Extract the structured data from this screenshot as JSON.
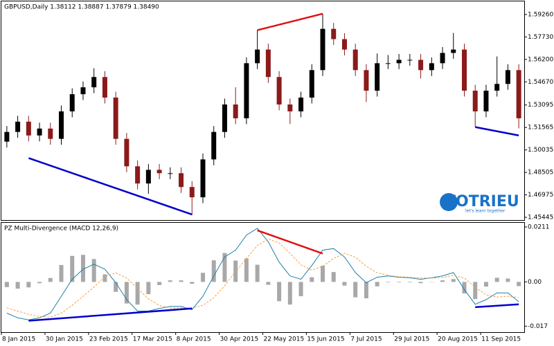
{
  "chart_data": [
    {
      "type": "candlestick",
      "title": "GBPUSD,Daily  1.38112 1.38887 1.37879 1.38490",
      "up_color": "#000000",
      "down_color": "#8b1a1a",
      "open": [
        1.506,
        1.5126,
        1.5196,
        1.5102,
        1.5149,
        1.5079,
        1.5266,
        1.5383,
        1.543,
        1.55,
        1.536,
        1.5079,
        1.4892,
        1.4775,
        1.4868,
        1.4845,
        1.4845,
        1.4751,
        1.4681,
        1.4939,
        1.5126,
        1.5313,
        1.5219,
        1.5594,
        1.5687,
        1.55,
        1.5313,
        1.5266,
        1.536,
        1.5547,
        1.5828,
        1.5758,
        1.5687,
        1.5547,
        1.5407,
        1.5594,
        1.5594,
        1.5617,
        1.5617,
        1.5547,
        1.5594,
        1.5664,
        1.5687,
        1.5407,
        1.5266,
        1.5407,
        1.5453,
        1.5547
      ],
      "high": [
        1.5166,
        1.5236,
        1.5236,
        1.5189,
        1.5189,
        1.5306,
        1.5423,
        1.547,
        1.556,
        1.554,
        1.54,
        1.5119,
        1.4932,
        1.4908,
        1.4908,
        1.4885,
        1.4885,
        1.4791,
        1.4979,
        1.5166,
        1.5353,
        1.543,
        1.5634,
        1.582,
        1.5727,
        1.554,
        1.5353,
        1.54,
        1.5587,
        1.593,
        1.5868,
        1.5798,
        1.5727,
        1.5587,
        1.566,
        1.565,
        1.5657,
        1.5657,
        1.5657,
        1.5634,
        1.5704,
        1.58,
        1.5727,
        1.5447,
        1.5447,
        1.564,
        1.5587,
        1.5587
      ],
      "low": [
        1.502,
        1.5086,
        1.5062,
        1.5062,
        1.5039,
        1.5039,
        1.5226,
        1.5343,
        1.539,
        1.532,
        1.5039,
        1.4852,
        1.4735,
        1.4705,
        1.4805,
        1.4805,
        1.4711,
        1.456,
        1.4641,
        1.4899,
        1.5086,
        1.5179,
        1.5179,
        1.5554,
        1.546,
        1.5273,
        1.518,
        1.5226,
        1.532,
        1.5507,
        1.5718,
        1.5647,
        1.5507,
        1.533,
        1.5367,
        1.5554,
        1.5554,
        1.5577,
        1.549,
        1.5507,
        1.5554,
        1.5624,
        1.5367,
        1.516,
        1.5226,
        1.5367,
        1.5413,
        1.515
      ],
      "close": [
        1.5126,
        1.5196,
        1.5102,
        1.5149,
        1.5079,
        1.5266,
        1.5383,
        1.543,
        1.55,
        1.536,
        1.5079,
        1.4892,
        1.4775,
        1.4868,
        1.4845,
        1.4845,
        1.4751,
        1.4681,
        1.4939,
        1.5126,
        1.5313,
        1.5219,
        1.5594,
        1.5687,
        1.55,
        1.5313,
        1.5266,
        1.536,
        1.5547,
        1.5828,
        1.5758,
        1.5687,
        1.5547,
        1.5407,
        1.5594,
        1.5594,
        1.5617,
        1.5617,
        1.5547,
        1.5594,
        1.5664,
        1.5687,
        1.5407,
        1.5266,
        1.5407,
        1.5453,
        1.5547,
        1.5219
      ],
      "ylim": [
        1.4526,
        1.6015
      ],
      "yticks": [
        {
          "value": 1.5926,
          "label": "1.59260"
        },
        {
          "value": 1.5773,
          "label": "1.57730"
        },
        {
          "value": 1.562,
          "label": "1.56200"
        },
        {
          "value": 1.5467,
          "label": "1.54670"
        },
        1.53095,
        1.51565,
        1.50035,
        1.48505,
        1.46975,
        1.45445
      ],
      "divergences": [
        {
          "color": "#0000cc",
          "x": [
            2,
            17
          ],
          "values": [
            1.4948,
            1.4564
          ]
        },
        {
          "color": "#e01010",
          "x": [
            23,
            29
          ],
          "values": [
            1.5819,
            1.5931
          ]
        },
        {
          "color": "#0000cc",
          "x": [
            43,
            47
          ],
          "values": [
            1.5159,
            1.5102
          ]
        }
      ],
      "watermark": {
        "name": "TOTRIEU",
        "tagline": "let's learn together"
      }
    },
    {
      "type": "macd",
      "title": "PZ Multi-Divergence (MACD 12,26,9)",
      "categories": [
        "8 Jan 2015",
        null,
        null,
        null,
        "30 Jan 2015",
        null,
        null,
        null,
        "23 Feb 2015",
        null,
        null,
        null,
        "17 Mar 2015",
        null,
        null,
        null,
        "8 Apr 2015",
        null,
        null,
        null,
        "30 Apr 2015",
        null,
        null,
        null,
        "22 May 2015",
        null,
        null,
        null,
        "15 Jun 2015",
        null,
        null,
        null,
        "7 Jul 2015",
        null,
        null,
        null,
        "29 Jul 2015",
        null,
        null,
        null,
        "20 Aug 2015",
        null,
        null,
        null,
        "11 Sep 2015",
        null,
        null,
        null
      ],
      "series": [
        {
          "name": "histogram",
          "color": "#a8a8a8",
          "values": [
            -0.002,
            -0.0026,
            -0.0021,
            -0.0005,
            0.0015,
            0.0065,
            0.01,
            0.0104,
            0.0088,
            0.0029,
            -0.0038,
            -0.0083,
            -0.0087,
            -0.0047,
            -0.0012,
            0.0006,
            0.0006,
            -0.0007,
            0.0035,
            0.0083,
            0.0111,
            0.0082,
            0.009,
            0.0066,
            -0.0011,
            -0.0074,
            -0.0087,
            -0.0055,
            0.0018,
            0.0062,
            0.0038,
            -0.0014,
            -0.0059,
            -0.0063,
            -0.0017,
            -0.0002,
            -0.0002,
            -0.0002,
            -0.0005,
            0.0001,
            0.0006,
            0.0011,
            -0.0044,
            -0.0066,
            -0.0018,
            0.0016,
            0.0013,
            -0.0016
          ]
        },
        {
          "name": "macd",
          "color": "#1e7ea8",
          "values": [
            -0.012,
            -0.0138,
            -0.0146,
            -0.0138,
            -0.012,
            -0.0055,
            0.001,
            0.0049,
            0.0068,
            0.0049,
            -0.0003,
            -0.0068,
            -0.0112,
            -0.0112,
            -0.0102,
            -0.0094,
            -0.0094,
            -0.0107,
            -0.0055,
            0.0023,
            0.0096,
            0.0122,
            0.018,
            0.0206,
            0.0154,
            0.0076,
            0.0023,
            0.001,
            0.0063,
            0.0122,
            0.0128,
            0.0096,
            0.0036,
            -0.0003,
            0.0018,
            0.0023,
            0.0018,
            0.0016,
            0.001,
            0.0016,
            0.0023,
            0.0036,
            -0.0029,
            -0.0086,
            -0.0068,
            -0.0042,
            -0.0042,
            -0.0076
          ]
        },
        {
          "name": "signal",
          "color": "#f4a040",
          "values": [
            -0.01,
            -0.0112,
            -0.0125,
            -0.0133,
            -0.0135,
            -0.012,
            -0.009,
            -0.0055,
            -0.002,
            0.002,
            0.0035,
            0.0015,
            -0.0025,
            -0.0065,
            -0.009,
            -0.01,
            -0.01,
            -0.01,
            -0.009,
            -0.006,
            -0.0015,
            0.004,
            0.009,
            0.014,
            0.0165,
            0.015,
            0.011,
            0.0065,
            0.0045,
            0.006,
            0.009,
            0.011,
            0.0095,
            0.006,
            0.0035,
            0.0025,
            0.002,
            0.0018,
            0.0015,
            0.0015,
            0.0017,
            0.0025,
            0.0015,
            -0.002,
            -0.005,
            -0.0058,
            -0.0055,
            -0.006
          ]
        }
      ],
      "ylim": [
        -0.0193,
        0.0227
      ],
      "yticks": [
        0.0211,
        {
          "value": 0,
          "label": "0.00"
        },
        -0.017
      ],
      "divergences": [
        {
          "color": "#e01010",
          "x": [
            23,
            29
          ],
          "values": [
            0.0198,
            0.0109
          ]
        },
        {
          "color": "#0000cc",
          "x": [
            2,
            17
          ],
          "values": [
            -0.0149,
            -0.0102
          ]
        },
        {
          "color": "#0000cc",
          "x": [
            43,
            47
          ],
          "values": [
            -0.0097,
            -0.0086
          ]
        }
      ]
    }
  ]
}
